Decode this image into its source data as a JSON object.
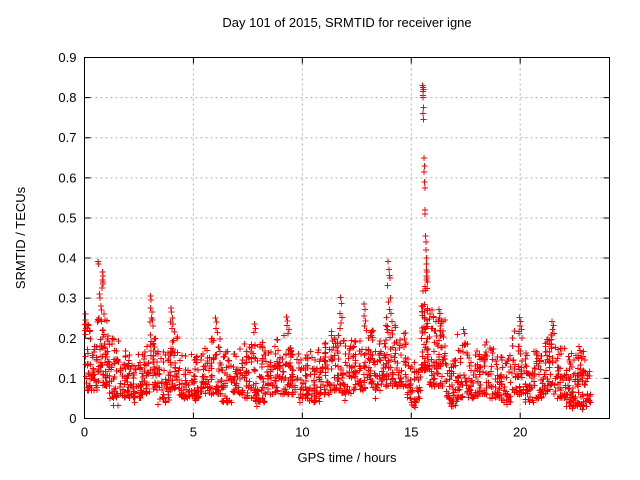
{
  "window": {
    "background": "#ffffff"
  },
  "chart_data": {
    "type": "scatter",
    "title": "Day 101 of 2015, SRMTID for receiver igne",
    "xlabel": "GPS time / hours",
    "ylabel": "SRMTID / TECUs",
    "xlim": [
      0,
      24.1
    ],
    "ylim": [
      0,
      0.9
    ],
    "xticks": {
      "values": [
        0,
        5,
        10,
        15,
        20
      ],
      "labels": [
        "0",
        "5",
        "10",
        "15",
        "20"
      ]
    },
    "yticks": {
      "values": [
        0,
        0.1,
        0.2,
        0.3,
        0.4,
        0.5,
        0.6,
        0.7,
        0.8,
        0.9
      ],
      "labels": [
        "0",
        "0.1",
        "0.2",
        "0.3",
        "0.4",
        "0.5",
        "0.6",
        "0.7",
        "0.8",
        "0.9"
      ]
    },
    "grid": {
      "show": true,
      "style": "dotted",
      "color": "#b0b0b0"
    },
    "legend": "none",
    "marker": {
      "shape": "plus",
      "size": 7,
      "color": "#ff0000"
    },
    "series_name": "SRMTID",
    "seed": 7,
    "dense_bands": [
      [
        0.0,
        0.3,
        30,
        0.07,
        0.24
      ],
      [
        0.3,
        0.6,
        26,
        0.07,
        0.18
      ],
      [
        0.6,
        1.1,
        60,
        0.08,
        0.25
      ],
      [
        1.1,
        1.6,
        45,
        0.05,
        0.2
      ],
      [
        1.6,
        2.1,
        42,
        0.05,
        0.17
      ],
      [
        2.1,
        2.6,
        40,
        0.05,
        0.16
      ],
      [
        2.6,
        3.0,
        36,
        0.06,
        0.18
      ],
      [
        3.0,
        3.4,
        42,
        0.07,
        0.21
      ],
      [
        3.4,
        3.9,
        36,
        0.04,
        0.17
      ],
      [
        3.9,
        4.3,
        38,
        0.07,
        0.22
      ],
      [
        4.3,
        4.8,
        40,
        0.05,
        0.17
      ],
      [
        4.8,
        5.3,
        40,
        0.05,
        0.16
      ],
      [
        5.3,
        5.8,
        40,
        0.06,
        0.18
      ],
      [
        5.8,
        6.3,
        46,
        0.06,
        0.2
      ],
      [
        6.3,
        6.8,
        40,
        0.04,
        0.17
      ],
      [
        6.8,
        7.3,
        42,
        0.06,
        0.19
      ],
      [
        7.3,
        7.8,
        42,
        0.05,
        0.19
      ],
      [
        7.8,
        8.3,
        46,
        0.04,
        0.19
      ],
      [
        8.3,
        8.8,
        40,
        0.06,
        0.19
      ],
      [
        8.8,
        9.3,
        42,
        0.06,
        0.21
      ],
      [
        9.3,
        9.8,
        42,
        0.06,
        0.2
      ],
      [
        9.8,
        10.3,
        40,
        0.05,
        0.17
      ],
      [
        10.3,
        10.8,
        40,
        0.04,
        0.18
      ],
      [
        10.8,
        11.3,
        42,
        0.06,
        0.19
      ],
      [
        11.3,
        11.8,
        46,
        0.07,
        0.22
      ],
      [
        11.8,
        12.3,
        42,
        0.06,
        0.2
      ],
      [
        12.3,
        12.8,
        40,
        0.07,
        0.2
      ],
      [
        12.8,
        13.3,
        44,
        0.07,
        0.22
      ],
      [
        13.3,
        13.8,
        40,
        0.07,
        0.2
      ],
      [
        13.8,
        14.3,
        46,
        0.08,
        0.24
      ],
      [
        14.3,
        14.8,
        42,
        0.08,
        0.22
      ],
      [
        14.8,
        15.3,
        34,
        0.03,
        0.15
      ],
      [
        15.3,
        15.45,
        10,
        0.05,
        0.14
      ],
      [
        15.45,
        15.8,
        62,
        0.12,
        0.33
      ],
      [
        15.8,
        16.1,
        30,
        0.08,
        0.28
      ],
      [
        16.1,
        16.6,
        52,
        0.08,
        0.25
      ],
      [
        16.6,
        17.1,
        40,
        0.03,
        0.15
      ],
      [
        17.1,
        17.6,
        42,
        0.05,
        0.21
      ],
      [
        17.6,
        18.1,
        40,
        0.05,
        0.18
      ],
      [
        18.1,
        18.6,
        42,
        0.06,
        0.2
      ],
      [
        18.6,
        19.1,
        40,
        0.05,
        0.18
      ],
      [
        19.1,
        19.6,
        38,
        0.04,
        0.16
      ],
      [
        19.6,
        20.1,
        46,
        0.06,
        0.22
      ],
      [
        20.1,
        20.6,
        40,
        0.04,
        0.17
      ],
      [
        20.6,
        21.1,
        40,
        0.05,
        0.17
      ],
      [
        21.1,
        21.6,
        46,
        0.06,
        0.21
      ],
      [
        21.6,
        22.1,
        42,
        0.05,
        0.18
      ],
      [
        22.1,
        22.6,
        52,
        0.03,
        0.17
      ],
      [
        22.6,
        23.05,
        56,
        0.03,
        0.17
      ],
      [
        23.05,
        23.25,
        14,
        0.04,
        0.12
      ]
    ],
    "feature_points": [
      [
        0.05,
        0.26
      ],
      [
        0.04,
        0.245
      ],
      [
        0.06,
        0.235
      ],
      [
        0.03,
        0.22
      ],
      [
        0.05,
        0.21
      ],
      [
        0.07,
        0.225
      ],
      [
        0.62,
        0.392
      ],
      [
        0.64,
        0.385
      ],
      [
        0.7,
        0.31
      ],
      [
        0.72,
        0.3
      ],
      [
        0.82,
        0.365
      ],
      [
        0.84,
        0.355
      ],
      [
        0.83,
        0.345
      ],
      [
        0.86,
        0.34
      ],
      [
        0.85,
        0.335
      ],
      [
        0.8,
        0.325
      ],
      [
        0.76,
        0.28
      ],
      [
        0.78,
        0.27
      ],
      [
        0.9,
        0.26
      ],
      [
        0.95,
        0.245
      ],
      [
        0.67,
        0.25
      ],
      [
        0.6,
        0.24
      ],
      [
        3.02,
        0.305
      ],
      [
        3.06,
        0.295
      ],
      [
        3.04,
        0.275
      ],
      [
        3.1,
        0.265
      ],
      [
        3.08,
        0.25
      ],
      [
        3.0,
        0.24
      ],
      [
        3.14,
        0.23
      ],
      [
        3.12,
        0.245
      ],
      [
        3.97,
        0.275
      ],
      [
        4.0,
        0.265
      ],
      [
        4.03,
        0.25
      ],
      [
        3.95,
        0.24
      ],
      [
        4.06,
        0.235
      ],
      [
        4.01,
        0.225
      ],
      [
        6.02,
        0.25
      ],
      [
        6.06,
        0.24
      ],
      [
        6.04,
        0.225
      ],
      [
        6.1,
        0.215
      ],
      [
        7.8,
        0.235
      ],
      [
        7.84,
        0.225
      ],
      [
        7.77,
        0.215
      ],
      [
        9.28,
        0.253
      ],
      [
        9.33,
        0.243
      ],
      [
        9.3,
        0.232
      ],
      [
        9.38,
        0.222
      ],
      [
        9.35,
        0.212
      ],
      [
        11.76,
        0.302
      ],
      [
        11.79,
        0.287
      ],
      [
        11.74,
        0.262
      ],
      [
        11.81,
        0.252
      ],
      [
        11.78,
        0.238
      ],
      [
        11.72,
        0.225
      ],
      [
        12.84,
        0.285
      ],
      [
        12.88,
        0.272
      ],
      [
        12.82,
        0.255
      ],
      [
        12.9,
        0.243
      ],
      [
        12.86,
        0.23
      ],
      [
        12.94,
        0.22
      ],
      [
        13.94,
        0.392
      ],
      [
        13.97,
        0.372
      ],
      [
        14.0,
        0.357
      ],
      [
        14.02,
        0.35
      ],
      [
        13.9,
        0.332
      ],
      [
        14.05,
        0.3
      ],
      [
        13.95,
        0.29
      ],
      [
        14.0,
        0.272
      ],
      [
        14.08,
        0.262
      ],
      [
        13.87,
        0.252
      ],
      [
        14.12,
        0.242
      ],
      [
        15.52,
        0.83
      ],
      [
        15.54,
        0.825
      ],
      [
        15.56,
        0.82
      ],
      [
        15.53,
        0.815
      ],
      [
        15.55,
        0.805
      ],
      [
        15.54,
        0.8
      ],
      [
        15.56,
        0.775
      ],
      [
        15.55,
        0.76
      ],
      [
        15.57,
        0.745
      ],
      [
        15.58,
        0.65
      ],
      [
        15.6,
        0.63
      ],
      [
        15.59,
        0.615
      ],
      [
        15.6,
        0.59
      ],
      [
        15.62,
        0.575
      ],
      [
        15.63,
        0.52
      ],
      [
        15.64,
        0.51
      ],
      [
        15.66,
        0.455
      ],
      [
        15.67,
        0.44
      ],
      [
        15.68,
        0.42
      ],
      [
        15.7,
        0.4
      ],
      [
        15.69,
        0.385
      ],
      [
        15.71,
        0.37
      ],
      [
        15.72,
        0.365
      ],
      [
        15.7,
        0.355
      ],
      [
        15.73,
        0.35
      ],
      [
        15.71,
        0.345
      ],
      [
        15.74,
        0.34
      ],
      [
        16.28,
        0.272
      ],
      [
        16.33,
        0.262
      ],
      [
        16.3,
        0.25
      ],
      [
        16.38,
        0.242
      ],
      [
        16.35,
        0.23
      ],
      [
        17.4,
        0.222
      ],
      [
        17.45,
        0.212
      ],
      [
        19.98,
        0.252
      ],
      [
        20.02,
        0.242
      ],
      [
        20.0,
        0.23
      ],
      [
        20.06,
        0.222
      ],
      [
        19.95,
        0.212
      ],
      [
        21.46,
        0.242
      ],
      [
        21.52,
        0.232
      ],
      [
        21.49,
        0.222
      ],
      [
        21.56,
        0.212
      ],
      [
        22.7,
        0.18
      ],
      [
        22.75,
        0.17
      ],
      [
        1.32,
        0.032
      ],
      [
        1.54,
        0.033
      ],
      [
        2.3,
        0.04
      ],
      [
        3.38,
        0.035
      ],
      [
        5.1,
        0.045
      ],
      [
        6.55,
        0.045
      ],
      [
        7.92,
        0.03
      ],
      [
        8.25,
        0.04
      ],
      [
        9.9,
        0.04
      ],
      [
        10.6,
        0.045
      ],
      [
        11.95,
        0.045
      ],
      [
        13.35,
        0.05
      ],
      [
        15.18,
        0.028
      ],
      [
        15.22,
        0.04
      ],
      [
        16.85,
        0.03
      ],
      [
        16.9,
        0.042
      ],
      [
        19.4,
        0.035
      ],
      [
        20.62,
        0.04
      ],
      [
        22.4,
        0.025
      ],
      [
        22.85,
        0.022
      ],
      [
        23.05,
        0.03
      ],
      [
        23.2,
        0.04
      ]
    ]
  }
}
